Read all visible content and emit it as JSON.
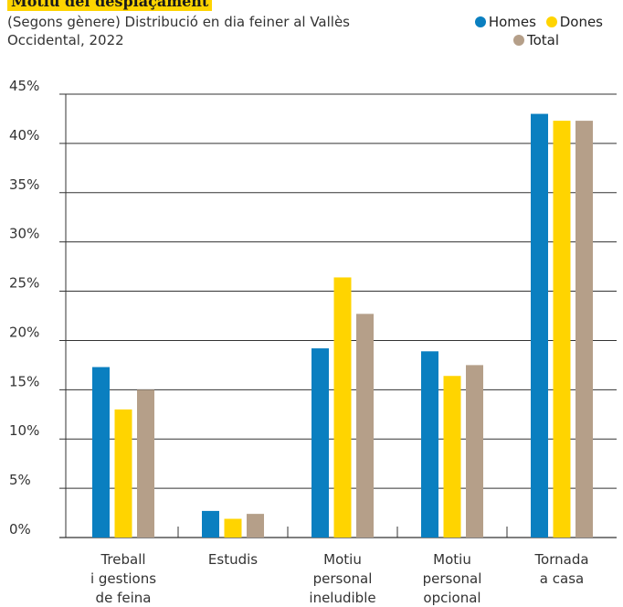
{
  "title": "Motiu del desplaçament",
  "subtitle": "(Segons gènere) Distribució en dia feiner al Vallès Occidental, 2022",
  "colors": {
    "homes": "#0a7fc0",
    "dones": "#ffd400",
    "total": "#b59f89",
    "grid": "#333333"
  },
  "legend": [
    {
      "name": "Homes",
      "color": "#0a7fc0"
    },
    {
      "name": "Dones",
      "color": "#ffd400"
    },
    {
      "name": "Total",
      "color": "#b59f89"
    }
  ],
  "chart_data": {
    "type": "bar",
    "title": "Motiu del desplaçament",
    "subtitle": "(Segons gènere) Distribució en dia feiner al Vallès Occidental, 2022",
    "xlabel": "",
    "ylabel": "",
    "ylim": [
      0,
      45
    ],
    "yticks": [
      "0%",
      "5%",
      "10%",
      "15%",
      "20%",
      "25%",
      "30%",
      "35%",
      "40%",
      "45%"
    ],
    "grid": true,
    "legend_position": "top-right",
    "categories": [
      [
        "Treball",
        "i gestions",
        "de feina"
      ],
      [
        "Estudis"
      ],
      [
        "Motiu",
        "personal",
        "ineludible"
      ],
      [
        "Motiu",
        "personal",
        "opcional"
      ],
      [
        "Tornada",
        "a casa"
      ]
    ],
    "series": [
      {
        "name": "Homes",
        "color": "#0a7fc0",
        "values": [
          17.3,
          2.7,
          19.2,
          18.9,
          43.0
        ]
      },
      {
        "name": "Dones",
        "color": "#ffd400",
        "values": [
          13.0,
          1.9,
          26.4,
          16.4,
          42.3
        ]
      },
      {
        "name": "Total",
        "color": "#b59f89",
        "values": [
          15.0,
          2.4,
          22.7,
          17.5,
          42.3
        ]
      }
    ]
  }
}
